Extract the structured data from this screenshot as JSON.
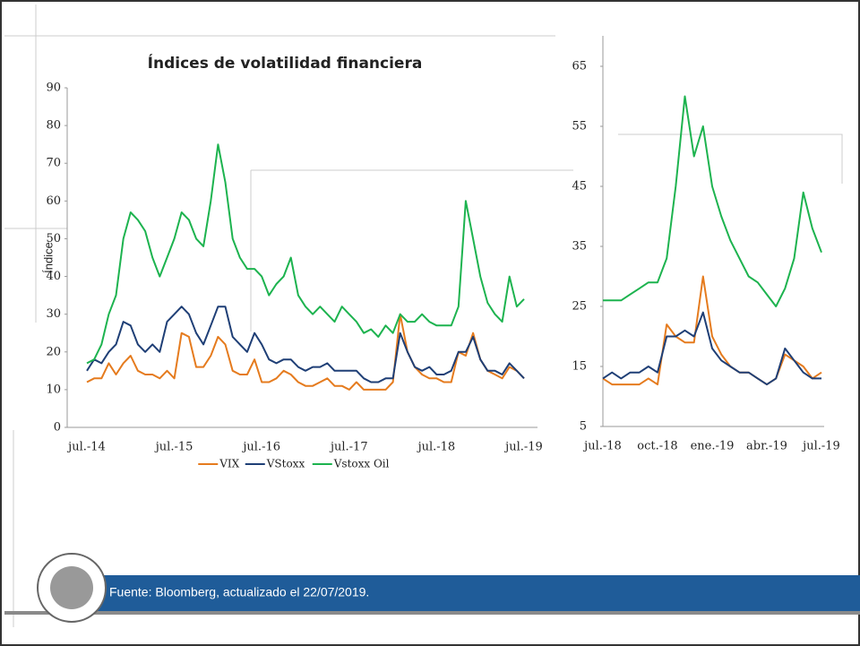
{
  "chart_data": [
    {
      "type": "line",
      "title": "Índices de volatilidad financiera",
      "ylabel": "Índice",
      "categories": [
        "jul.-14",
        null,
        null,
        null,
        null,
        null,
        null,
        null,
        null,
        null,
        null,
        null,
        "jul.-15",
        null,
        null,
        null,
        null,
        null,
        null,
        null,
        null,
        null,
        null,
        null,
        "jul.-16",
        null,
        null,
        null,
        null,
        null,
        null,
        null,
        null,
        null,
        null,
        null,
        "jul.-17",
        null,
        null,
        null,
        null,
        null,
        null,
        null,
        null,
        null,
        null,
        null,
        "jul.-18",
        null,
        null,
        null,
        null,
        null,
        null,
        null,
        null,
        null,
        null,
        null,
        "jul.-19"
      ],
      "ylim": [
        0,
        90
      ],
      "yticks": [
        0,
        10,
        20,
        30,
        40,
        50,
        60,
        70,
        80,
        90
      ],
      "legend": "bottom",
      "series": [
        {
          "name": "VIX",
          "color": "#e57b1e",
          "values": [
            12,
            13,
            13,
            17,
            14,
            17,
            19,
            15,
            14,
            14,
            13,
            15,
            13,
            25,
            24,
            16,
            16,
            19,
            24,
            22,
            15,
            14,
            14,
            18,
            12,
            12,
            13,
            15,
            14,
            12,
            11,
            11,
            12,
            13,
            11,
            11,
            10,
            12,
            10,
            10,
            10,
            10,
            12,
            30,
            20,
            16,
            14,
            13,
            13,
            12,
            12,
            20,
            19,
            25,
            18,
            15,
            14,
            13,
            16,
            15,
            13
          ]
        },
        {
          "name": "VStoxx",
          "color": "#1f3f76",
          "values": [
            15,
            18,
            17,
            20,
            22,
            28,
            27,
            22,
            20,
            22,
            20,
            28,
            30,
            32,
            30,
            25,
            22,
            27,
            32,
            32,
            24,
            22,
            20,
            25,
            22,
            18,
            17,
            18,
            18,
            16,
            15,
            16,
            16,
            17,
            15,
            15,
            15,
            15,
            13,
            12,
            12,
            13,
            13,
            25,
            20,
            16,
            15,
            16,
            14,
            14,
            15,
            20,
            20,
            24,
            18,
            15,
            15,
            14,
            17,
            15,
            13
          ]
        },
        {
          "name": "Vstoxx Oil",
          "color": "#1db34f",
          "values": [
            17,
            18,
            22,
            30,
            35,
            50,
            57,
            55,
            52,
            45,
            40,
            45,
            50,
            57,
            55,
            50,
            48,
            60,
            75,
            65,
            50,
            45,
            42,
            42,
            40,
            35,
            38,
            40,
            45,
            35,
            32,
            30,
            32,
            30,
            28,
            32,
            30,
            28,
            25,
            26,
            24,
            27,
            25,
            30,
            28,
            28,
            30,
            28,
            27,
            27,
            27,
            32,
            60,
            50,
            40,
            33,
            30,
            28,
            40,
            32,
            34
          ]
        }
      ]
    },
    {
      "type": "line",
      "categories": [
        "jul.-18",
        null,
        null,
        null,
        null,
        null,
        "oct.-18",
        null,
        null,
        null,
        null,
        null,
        "ene.-19",
        null,
        null,
        null,
        null,
        null,
        "abr.-19",
        null,
        null,
        null,
        null,
        null,
        "jul.-19"
      ],
      "ylim": [
        5,
        65
      ],
      "yticks": [
        5,
        15,
        25,
        35,
        45,
        55,
        65
      ],
      "series": [
        {
          "color": "#1db34f",
          "values": [
            26,
            26,
            26,
            27,
            28,
            29,
            29,
            33,
            45,
            60,
            50,
            55,
            45,
            40,
            36,
            33,
            30,
            29,
            27,
            25,
            28,
            33,
            44,
            38,
            34
          ]
        },
        {
          "color": "#e57b1e",
          "values": [
            13,
            12,
            12,
            12,
            12,
            13,
            12,
            22,
            20,
            19,
            19,
            30,
            20,
            17,
            15,
            14,
            14,
            13,
            12,
            13,
            17,
            16,
            15,
            13,
            14
          ]
        },
        {
          "color": "#1f3f76",
          "values": [
            13,
            14,
            13,
            14,
            14,
            15,
            14,
            20,
            20,
            21,
            20,
            24,
            18,
            16,
            15,
            14,
            14,
            13,
            12,
            13,
            18,
            16,
            14,
            13,
            13
          ]
        }
      ]
    }
  ],
  "footer": {
    "source": "Fuente: Bloomberg, actualizado el 22/07/2019."
  }
}
